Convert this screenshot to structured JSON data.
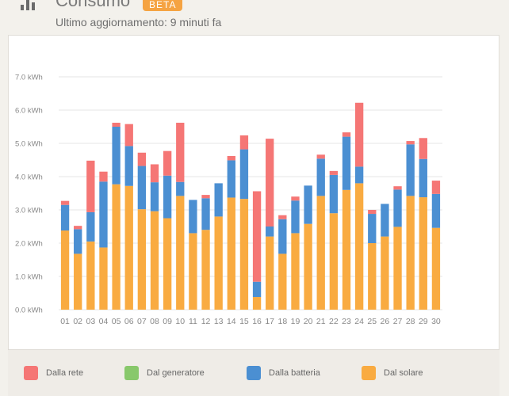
{
  "header": {
    "title": "Consumo",
    "badge": "BETA",
    "subtitle": "Ultimo aggiornamento: 9 minuti fa"
  },
  "colors": {
    "rete": "#f57675",
    "generatore": "#88c86b",
    "batteria": "#4b8fd2",
    "solare": "#f9ab41",
    "badge": "#f5a342",
    "grid": "#e6e6e6",
    "axis_text": "#888888"
  },
  "chart_data": {
    "type": "bar",
    "stacked": true,
    "categories": [
      "01",
      "02",
      "03",
      "04",
      "05",
      "06",
      "07",
      "08",
      "09",
      "10",
      "11",
      "12",
      "13",
      "14",
      "15",
      "16",
      "17",
      "18",
      "19",
      "20",
      "21",
      "22",
      "23",
      "24",
      "25",
      "26",
      "27",
      "28",
      "29",
      "30"
    ],
    "y_ticks": [
      "0.0 kWh",
      "1.0 kWh",
      "2.0 kWh",
      "3.0 kWh",
      "4.0 kWh",
      "5.0 kWh",
      "6.0 kWh",
      "7.0 kWh"
    ],
    "ylim": [
      0,
      7
    ],
    "unit": "kWh",
    "grid": true,
    "legend_position": "bottom",
    "series": [
      {
        "name": "Dal solare",
        "color_key": "solare",
        "values": [
          2.38,
          1.68,
          2.05,
          1.87,
          3.77,
          3.72,
          3.02,
          2.96,
          2.75,
          3.42,
          2.3,
          2.4,
          2.8,
          3.37,
          3.33,
          0.38,
          2.2,
          1.68,
          2.3,
          2.58,
          3.42,
          2.9,
          3.6,
          3.8,
          2.0,
          2.2,
          2.49,
          3.42,
          3.38,
          2.46
        ]
      },
      {
        "name": "Dal generatore",
        "color_key": "generatore",
        "values": [
          0,
          0,
          0,
          0,
          0,
          0,
          0,
          0,
          0,
          0,
          0,
          0,
          0,
          0,
          0,
          0,
          0,
          0,
          0,
          0,
          0,
          0,
          0,
          0,
          0,
          0,
          0,
          0,
          0,
          0
        ]
      },
      {
        "name": "Dalla batteria",
        "color_key": "batteria",
        "values": [
          0.77,
          0.74,
          0.88,
          1.98,
          1.73,
          1.2,
          1.3,
          0.87,
          1.28,
          0.42,
          1.0,
          0.95,
          1.0,
          1.12,
          1.49,
          0.46,
          0.3,
          1.04,
          0.98,
          1.15,
          1.12,
          1.15,
          1.6,
          0.5,
          0.88,
          0.98,
          1.12,
          1.55,
          1.15,
          1.02
        ]
      },
      {
        "name": "Dalla rete",
        "color_key": "rete",
        "values": [
          0.12,
          0.1,
          1.55,
          0.3,
          0.12,
          0.66,
          0.4,
          0.54,
          0.74,
          1.78,
          0,
          0.1,
          0,
          0.13,
          0.42,
          2.72,
          2.64,
          0.12,
          0.12,
          0,
          0.12,
          0.12,
          0.13,
          1.92,
          0.12,
          0,
          0.1,
          0.1,
          0.63,
          0.4
        ]
      }
    ]
  },
  "legend": [
    {
      "label": "Dalla rete",
      "color_key": "rete"
    },
    {
      "label": "Dal generatore",
      "color_key": "generatore"
    },
    {
      "label": "Dalla batteria",
      "color_key": "batteria"
    },
    {
      "label": "Dal solare",
      "color_key": "solare"
    }
  ]
}
